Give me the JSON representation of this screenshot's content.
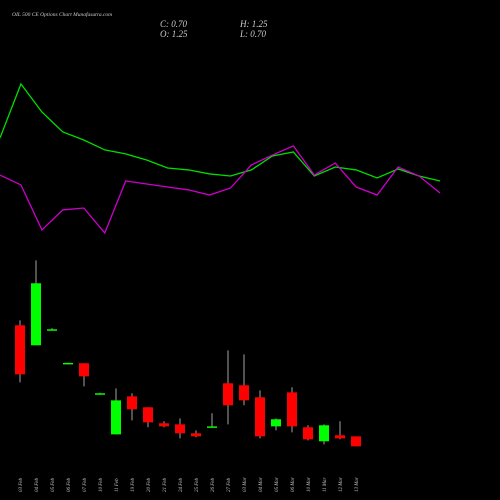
{
  "chart_data": {
    "type": "candlestick",
    "title": "OIL 500 CE Options Chart Munafasutra.com",
    "info": [
      "C: 0.70",
      "H: 1.25",
      "O: 1.25",
      "L: 0.70"
    ],
    "categories": [
      "03 Feb",
      "04 Feb",
      "05 Feb",
      "06 Feb",
      "07 Feb",
      "10 Feb",
      "11 Feb",
      "19 Feb",
      "20 Feb",
      "21 Feb",
      "24 Feb",
      "25 Feb",
      "26 Feb",
      "27 Feb",
      "03 Mar",
      "04 Mar",
      "05 Mar",
      "06 Mar",
      "10 Mar",
      "11 Mar",
      "12 Mar",
      "13 Mar"
    ],
    "open": [
      7.36,
      6.26,
      7.14,
      5.27,
      5.27,
      3.62,
      1.36,
      3.45,
      2.85,
      1.97,
      1.91,
      1.42,
      1.75,
      4.17,
      4.06,
      3.4,
      1.8,
      3.67,
      1.75,
      0.98,
      1.31,
      1.25
    ],
    "high": [
      7.63,
      10.93,
      7.2,
      5.3,
      5.27,
      3.65,
      3.89,
      3.62,
      2.85,
      2.08,
      2.24,
      1.58,
      2.52,
      5.98,
      5.76,
      3.78,
      2.24,
      3.95,
      1.86,
      1.91,
      2.08,
      1.25
    ],
    "low": [
      4.22,
      6.26,
      7.1,
      5.24,
      4.0,
      3.6,
      1.36,
      2.13,
      1.75,
      1.75,
      1.14,
      1.2,
      1.75,
      1.91,
      2.96,
      1.14,
      1.58,
      1.47,
      1.03,
      0.81,
      1.09,
      0.7
    ],
    "close": [
      4.66,
      9.67,
      7.14,
      5.29,
      4.55,
      3.62,
      3.23,
      2.74,
      2.02,
      1.8,
      1.42,
      1.25,
      1.8,
      2.96,
      3.23,
      1.25,
      2.19,
      1.8,
      1.09,
      1.86,
      1.14,
      0.7
    ],
    "up_color": "#00ff00",
    "down_color": "#ff0000",
    "ylim": [
      0.5,
      11.5
    ],
    "y2lim": [
      0,
      100
    ],
    "series": [
      {
        "color": "#00dd00",
        "axis": "y2",
        "values": [
          63.8,
          97.5,
          80,
          67.5,
          62.5,
          56.3,
          53.8,
          50,
          45,
          43.8,
          41.3,
          40,
          43.8,
          52.5,
          55,
          40,
          45.6,
          43.8,
          38.8,
          44.4,
          40,
          36.9
        ]
      },
      {
        "color": "#cc00cc",
        "axis": "y2",
        "values": [
          40.6,
          34.4,
          6.3,
          18.8,
          20,
          4.4,
          36.9,
          35,
          33.1,
          31.3,
          28.1,
          32.5,
          46.9,
          53.1,
          58.8,
          40.6,
          48.1,
          33.1,
          28.1,
          45.6,
          40,
          29.4
        ]
      }
    ]
  }
}
